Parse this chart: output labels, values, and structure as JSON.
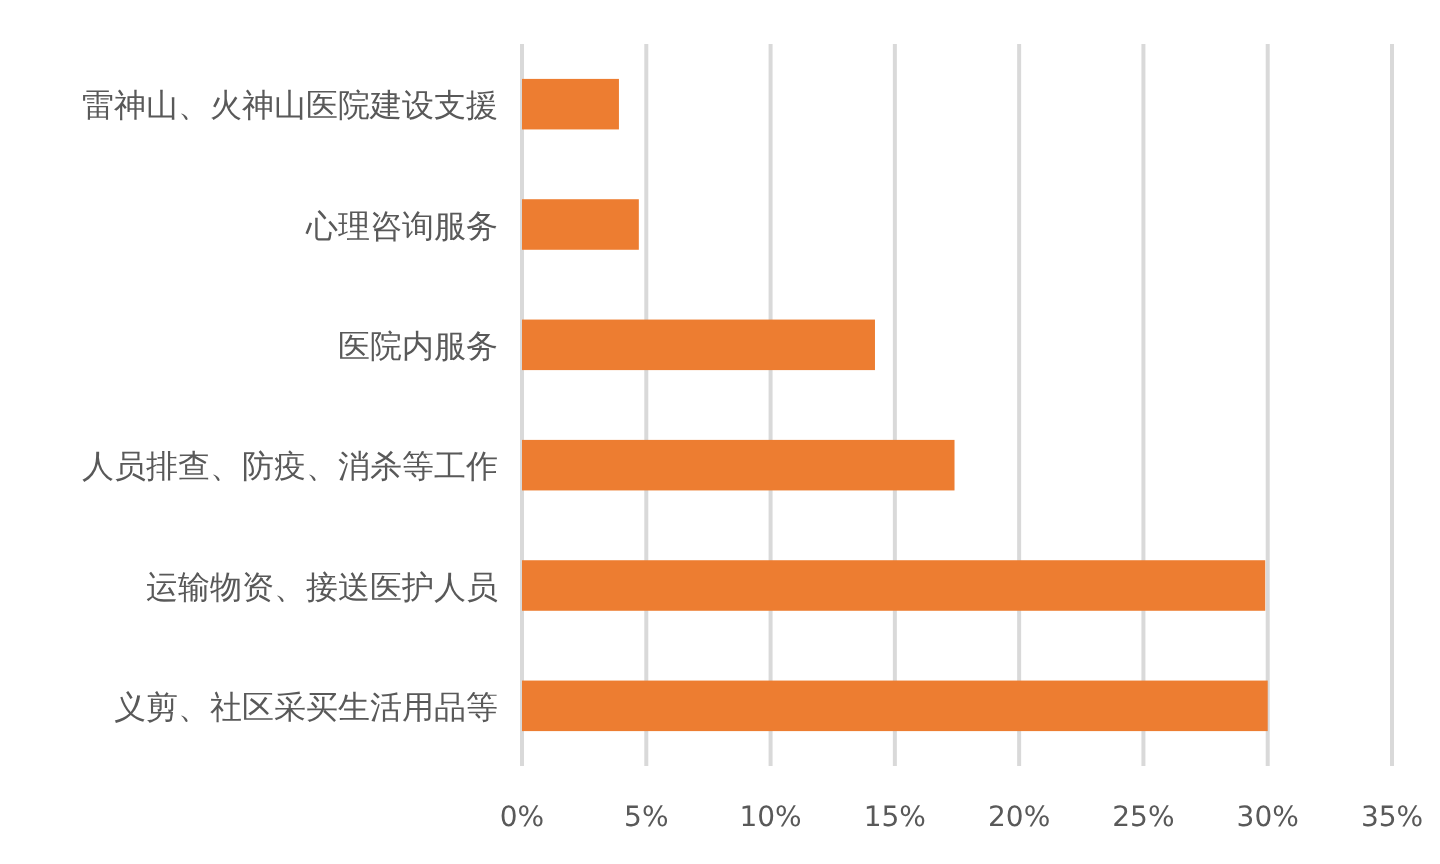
{
  "chart_data": {
    "type": "bar",
    "orientation": "horizontal",
    "categories": [
      "雷神山、火神山医院建设支援",
      "心理咨询服务",
      "医院内服务",
      "人员排查、防疫、消杀等工作",
      "运输物资、接送医护人员",
      "义剪、社区采买生活用品等"
    ],
    "values": [
      3.9,
      4.7,
      14.2,
      17.4,
      29.9,
      30.0
    ],
    "color": "#ed7d31",
    "xlim": [
      0,
      35
    ],
    "xticks": [
      {
        "value": 0,
        "label": "0%"
      },
      {
        "value": 5,
        "label": "5%"
      },
      {
        "value": 10,
        "label": "10%"
      },
      {
        "value": 15,
        "label": "15%"
      },
      {
        "value": 20,
        "label": "20%"
      },
      {
        "value": 25,
        "label": "25%"
      },
      {
        "value": 30,
        "label": "30%"
      },
      {
        "value": 35,
        "label": "35%"
      }
    ],
    "grid": "x"
  }
}
